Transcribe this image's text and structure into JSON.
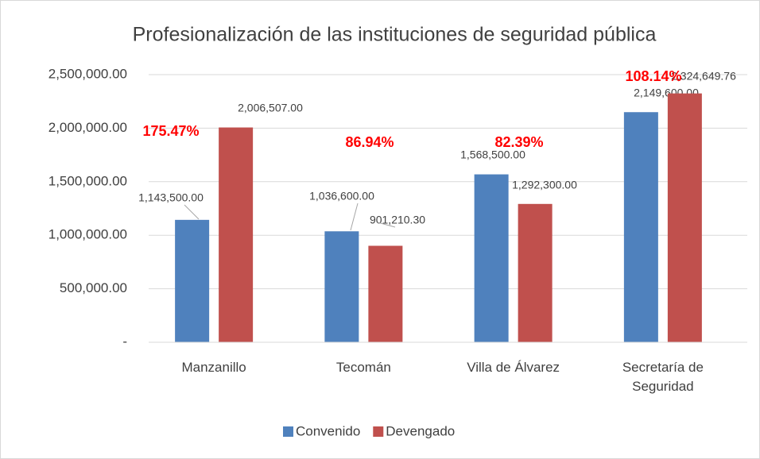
{
  "chart_data": {
    "type": "bar",
    "title": "Profesionalización de las instituciones de seguridad pública",
    "categories": [
      "Manzanillo",
      "Tecomán",
      "Villa de Álvarez",
      "Secretaría de Seguridad"
    ],
    "series": [
      {
        "name": "Convenido",
        "color": "#4f81bd",
        "values": [
          1143500,
          1036600,
          1568500,
          2149600
        ],
        "value_labels": [
          "1,143,500.00",
          "1,036,600.00",
          "1,568,500.00",
          "2,149,600.00"
        ]
      },
      {
        "name": "Devengado",
        "color": "#c0504d",
        "values": [
          2006507,
          901210.3,
          1292300,
          2324649.76
        ],
        "value_labels": [
          "2,006,507.00",
          "901,210.30",
          "1,292,300.00",
          "2,324,649.76"
        ]
      }
    ],
    "annotations": [
      "175.47%",
      "86.94%",
      "82.39%",
      "108.14%"
    ],
    "ylim": [
      0,
      2500000
    ],
    "yticks": [
      {
        "value": 0,
        "label": "-"
      },
      {
        "value": 500000,
        "label": "500,000.00"
      },
      {
        "value": 1000000,
        "label": "1,000,000.00"
      },
      {
        "value": 1500000,
        "label": "1,500,000.00"
      },
      {
        "value": 2000000,
        "label": "2,000,000.00"
      },
      {
        "value": 2500000,
        "label": "2,500,000.00"
      }
    ],
    "grid": true,
    "legend": "bottom"
  }
}
